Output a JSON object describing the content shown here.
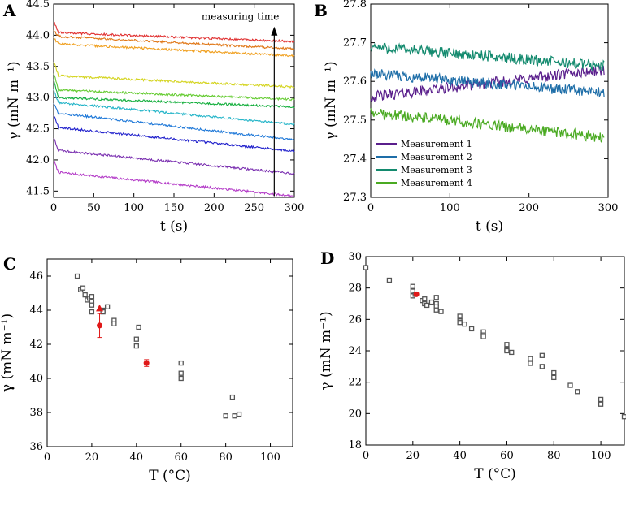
{
  "chart_data": [
    {
      "panel": "A",
      "type": "line",
      "xlabel": "t (s)",
      "ylabel": "γ (mN m⁻¹)",
      "xlim": [
        0,
        300
      ],
      "ylim": [
        41.4,
        44.5
      ],
      "xticks": [
        0,
        50,
        100,
        150,
        200,
        250,
        300
      ],
      "yticks": [
        41.5,
        42.0,
        42.5,
        43.0,
        43.5,
        44.0,
        44.5
      ],
      "annotation": "measuring time",
      "series": [
        {
          "name": "curve-1",
          "color": "#b43cc8",
          "start": 42.0,
          "plateau": 41.8,
          "end": 41.42
        },
        {
          "name": "curve-2",
          "color": "#7a2fb0",
          "start": 42.35,
          "plateau": 42.15,
          "end": 41.78
        },
        {
          "name": "curve-3",
          "color": "#2222cc",
          "start": 42.72,
          "plateau": 42.52,
          "end": 42.14
        },
        {
          "name": "curve-4",
          "color": "#1e78d8",
          "start": 42.92,
          "plateau": 42.75,
          "end": 42.32
        },
        {
          "name": "curve-5",
          "color": "#22b4c8",
          "start": 43.12,
          "plateau": 42.92,
          "end": 42.57
        },
        {
          "name": "curve-6",
          "color": "#18b040",
          "start": 43.28,
          "plateau": 43.0,
          "end": 42.85
        },
        {
          "name": "curve-7",
          "color": "#66cc33",
          "start": 43.4,
          "plateau": 43.12,
          "end": 42.97
        },
        {
          "name": "curve-8",
          "color": "#d4d41e",
          "start": 43.58,
          "plateau": 43.35,
          "end": 43.17
        },
        {
          "name": "curve-9",
          "color": "#f0a020",
          "start": 43.96,
          "plateau": 43.86,
          "end": 43.67
        },
        {
          "name": "curve-10",
          "color": "#e07818",
          "start": 44.08,
          "plateau": 43.98,
          "end": 43.78
        },
        {
          "name": "curve-11",
          "color": "#e03030",
          "start": 44.22,
          "plateau": 44.04,
          "end": 43.9
        }
      ]
    },
    {
      "panel": "B",
      "type": "line",
      "xlabel": "t (s)",
      "ylabel": "γ (mN m⁻¹)",
      "xlim": [
        0,
        300
      ],
      "ylim": [
        27.3,
        27.8
      ],
      "xticks": [
        0,
        100,
        200,
        300
      ],
      "yticks": [
        27.3,
        27.4,
        27.5,
        27.6,
        27.7,
        27.8
      ],
      "series": [
        {
          "name": "Measurement 1",
          "color": "#5a1f8c",
          "start": 27.56,
          "end": 27.63
        },
        {
          "name": "Measurement 2",
          "color": "#1e6ea8",
          "start": 27.62,
          "end": 27.57
        },
        {
          "name": "Measurement 3",
          "color": "#138a6e",
          "start": 27.69,
          "end": 27.64
        },
        {
          "name": "Measurement 4",
          "color": "#4aaa22",
          "start": 27.52,
          "end": 27.455
        }
      ]
    },
    {
      "panel": "C",
      "type": "scatter",
      "xlabel": "T (°C)",
      "ylabel": "γ (mN m⁻¹)",
      "xlim": [
        0,
        110
      ],
      "ylim": [
        36,
        47
      ],
      "xticks": [
        0,
        20,
        40,
        60,
        80,
        100
      ],
      "yticks": [
        36,
        38,
        40,
        42,
        44,
        46
      ],
      "literature": [
        [
          13.5,
          46.0
        ],
        [
          15,
          45.2
        ],
        [
          16,
          45.3
        ],
        [
          17,
          44.9
        ],
        [
          18,
          44.6
        ],
        [
          19,
          44.7
        ],
        [
          20,
          44.8
        ],
        [
          20,
          44.5
        ],
        [
          20,
          44.3
        ],
        [
          20,
          43.9
        ],
        [
          25,
          44.0
        ],
        [
          25,
          43.9
        ],
        [
          27,
          44.2
        ],
        [
          30,
          43.4
        ],
        [
          30,
          43.2
        ],
        [
          41,
          43.0
        ],
        [
          40,
          42.3
        ],
        [
          40,
          41.9
        ],
        [
          60,
          40.9
        ],
        [
          60,
          40.3
        ],
        [
          60,
          40.0
        ],
        [
          80,
          37.8
        ],
        [
          83,
          38.9
        ],
        [
          84,
          37.8
        ],
        [
          86,
          37.9
        ]
      ],
      "measured": [
        {
          "x": 23.5,
          "y": 43.1,
          "err": 0.7,
          "marker": "circle"
        },
        {
          "x": 23.5,
          "y": 44.1,
          "err": 0,
          "marker": "triangle"
        },
        {
          "x": 44.5,
          "y": 40.9,
          "err": 0.2,
          "marker": "circle"
        }
      ]
    },
    {
      "panel": "D",
      "type": "scatter",
      "xlabel": "T (°C)",
      "ylabel": "γ (mN m⁻¹)",
      "xlim": [
        0,
        110
      ],
      "ylim": [
        18,
        30
      ],
      "xticks": [
        0,
        20,
        40,
        60,
        80,
        100
      ],
      "yticks": [
        18,
        20,
        22,
        24,
        26,
        28,
        30
      ],
      "literature": [
        [
          0,
          29.3
        ],
        [
          10,
          28.5
        ],
        [
          20,
          28.1
        ],
        [
          20,
          27.8
        ],
        [
          20,
          27.5
        ],
        [
          21,
          27.6
        ],
        [
          24,
          27.2
        ],
        [
          25,
          27.3
        ],
        [
          25,
          27.0
        ],
        [
          26,
          26.9
        ],
        [
          28,
          27.1
        ],
        [
          30,
          27.4
        ],
        [
          30,
          27.0
        ],
        [
          30,
          26.8
        ],
        [
          30,
          26.6
        ],
        [
          32,
          26.5
        ],
        [
          40,
          26.2
        ],
        [
          40,
          25.9
        ],
        [
          40,
          25.8
        ],
        [
          42,
          25.7
        ],
        [
          45,
          25.4
        ],
        [
          50,
          25.2
        ],
        [
          50,
          25.0
        ],
        [
          50,
          24.9
        ],
        [
          60,
          24.4
        ],
        [
          60,
          24.1
        ],
        [
          60,
          24.0
        ],
        [
          62,
          23.9
        ],
        [
          70,
          23.5
        ],
        [
          70,
          23.2
        ],
        [
          75,
          23.7
        ],
        [
          75,
          23.0
        ],
        [
          80,
          22.6
        ],
        [
          80,
          22.3
        ],
        [
          87,
          21.8
        ],
        [
          90,
          21.4
        ],
        [
          100,
          20.9
        ],
        [
          100,
          20.6
        ],
        [
          110,
          19.8
        ]
      ],
      "measured": [
        {
          "x": 21.5,
          "y": 27.6,
          "err": 0.1,
          "marker": "circle"
        }
      ]
    }
  ],
  "labels": {
    "panel_a": "A",
    "panel_b": "B",
    "panel_c": "C",
    "panel_d": "D",
    "measuring_time": "measuring time"
  },
  "colors": {
    "literature_marker": "#555555",
    "measured_marker": "#e01818"
  }
}
